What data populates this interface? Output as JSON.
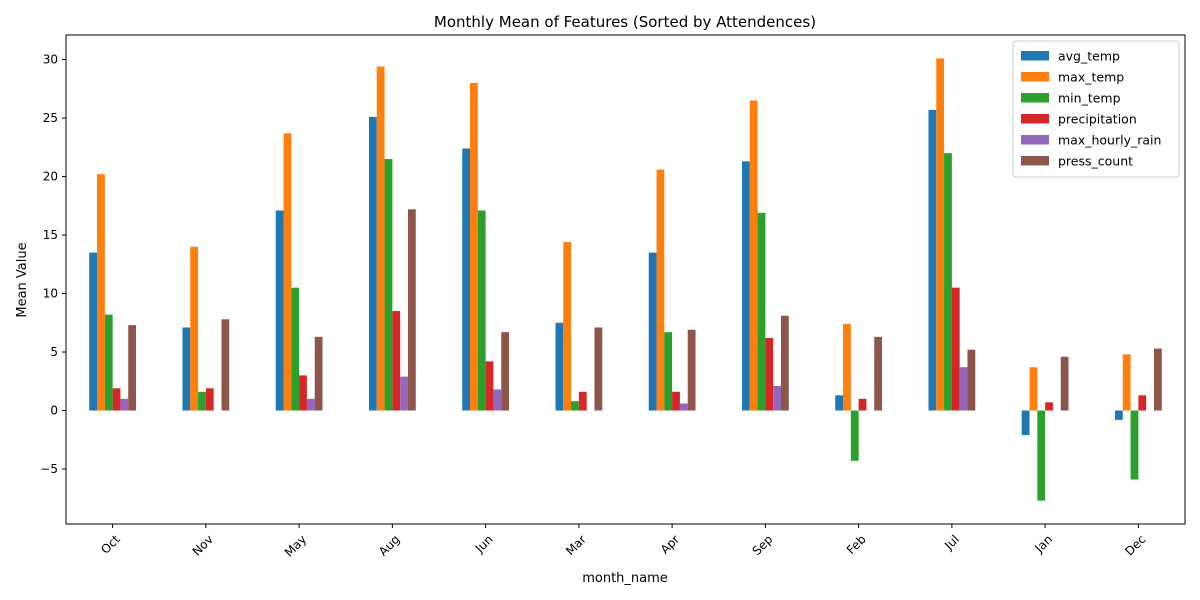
{
  "chart_data": {
    "type": "bar",
    "title": "Monthly Mean of Features (Sorted by Attendences)",
    "xlabel": "month_name",
    "ylabel": "Mean Value",
    "categories": [
      "Oct",
      "Nov",
      "May",
      "Aug",
      "Jun",
      "Mar",
      "Apr",
      "Sep",
      "Feb",
      "Jul",
      "Jan",
      "Dec"
    ],
    "ylim": [
      -9.7,
      32.1
    ],
    "yticks": [
      -5,
      0,
      5,
      10,
      15,
      20,
      25,
      30
    ],
    "grid": false,
    "legend_position": "top-right",
    "series": [
      {
        "name": "avg_temp",
        "color": "#1f77b4",
        "values": [
          13.5,
          7.1,
          17.1,
          25.1,
          22.4,
          7.5,
          13.5,
          21.3,
          1.3,
          25.7,
          -2.1,
          -0.8
        ]
      },
      {
        "name": "max_temp",
        "color": "#ff7f0e",
        "values": [
          20.2,
          14.0,
          23.7,
          29.4,
          28.0,
          14.4,
          20.6,
          26.5,
          7.4,
          30.1,
          3.7,
          4.8
        ]
      },
      {
        "name": "min_temp",
        "color": "#2ca02c",
        "values": [
          8.2,
          1.6,
          10.5,
          21.5,
          17.1,
          0.8,
          6.7,
          16.9,
          -4.3,
          22.0,
          -7.7,
          -5.9
        ]
      },
      {
        "name": "precipitation",
        "color": "#d62728",
        "values": [
          1.9,
          1.9,
          3.0,
          8.5,
          4.2,
          1.6,
          1.6,
          6.2,
          1.0,
          10.5,
          0.7,
          1.3
        ]
      },
      {
        "name": "max_hourly_rain",
        "color": "#9467bd",
        "values": [
          1.0,
          0.0,
          1.0,
          2.9,
          1.8,
          0.0,
          0.6,
          2.1,
          0.0,
          3.7,
          0.0,
          0.0
        ]
      },
      {
        "name": "press_count",
        "color": "#8c564b",
        "values": [
          7.3,
          7.8,
          6.3,
          17.2,
          6.7,
          7.1,
          6.9,
          8.1,
          6.3,
          5.2,
          4.6,
          5.3
        ]
      }
    ]
  }
}
